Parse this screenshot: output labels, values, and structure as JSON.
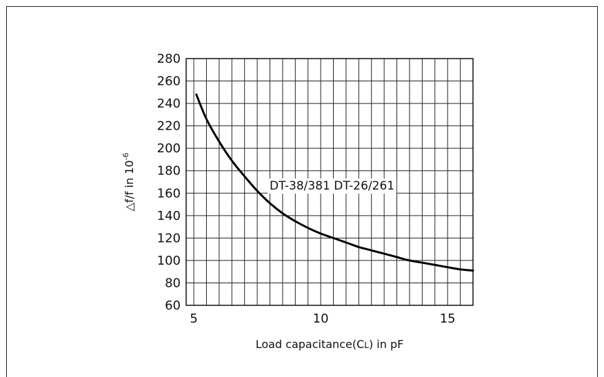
{
  "chart_data": {
    "type": "line",
    "title": "",
    "xlabel": "Load capacitance(CL) in pF",
    "xlabel_parts": {
      "pre": "Load capacitance(C",
      "sub": "L",
      "post": ") in pF"
    },
    "ylabel": "△f/f in 10-6",
    "ylabel_parts": {
      "base": "△f/f in 10",
      "sup": "-6"
    },
    "xlim": [
      4.7,
      16
    ],
    "ylim": [
      60,
      280
    ],
    "x_ticks": [
      5,
      10,
      15
    ],
    "y_ticks": [
      60,
      80,
      100,
      120,
      140,
      160,
      180,
      200,
      220,
      240,
      260,
      280
    ],
    "grid": true,
    "series": [
      {
        "name": "DT-38/381 DT-26/261",
        "x": [
          5.1,
          5.5,
          6.0,
          6.5,
          7.0,
          7.5,
          8.0,
          8.5,
          9.0,
          9.5,
          10.0,
          10.5,
          11.0,
          11.5,
          12.0,
          12.5,
          13.0,
          13.5,
          14.0,
          14.5,
          15.0,
          15.5,
          16.0
        ],
        "y": [
          248,
          226,
          206,
          189,
          175,
          162,
          151,
          142,
          135,
          129,
          124,
          120,
          116,
          112,
          109,
          106,
          103,
          100,
          98,
          96,
          94,
          92,
          91
        ]
      }
    ],
    "annotation": "DT-38/381 DT-26/261"
  }
}
